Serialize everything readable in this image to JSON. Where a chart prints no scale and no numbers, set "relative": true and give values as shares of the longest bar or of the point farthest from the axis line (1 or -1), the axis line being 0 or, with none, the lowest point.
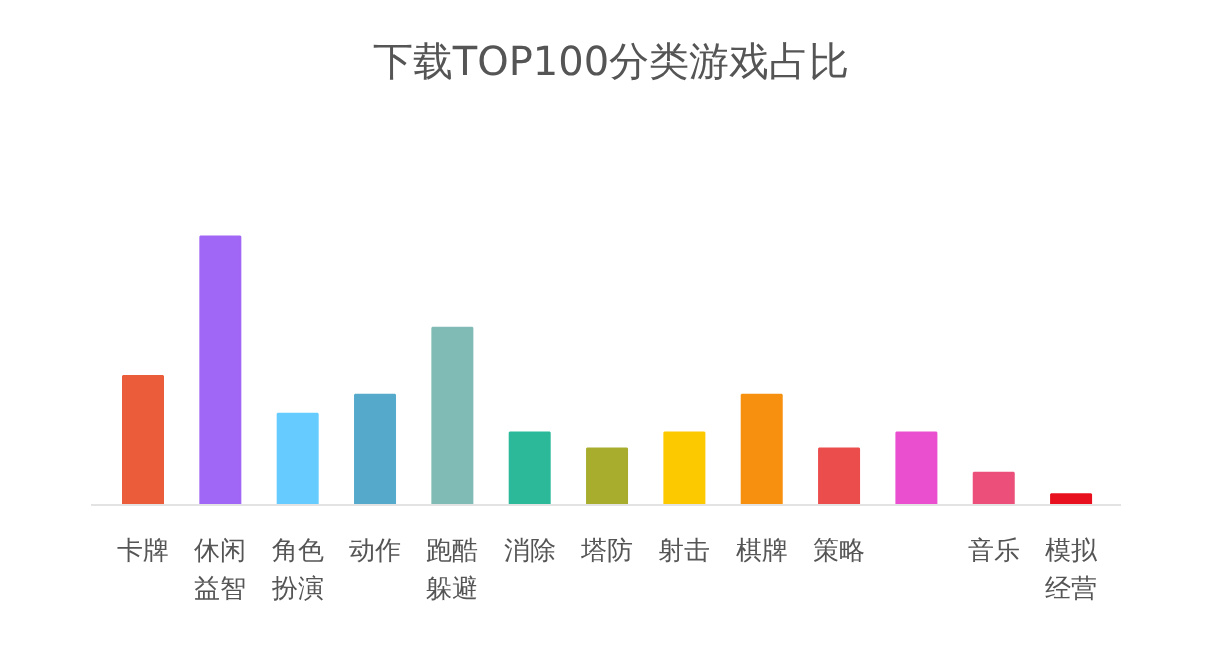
{
  "chart_data": {
    "type": "bar",
    "title": "下载TOP100分类游戏占比",
    "relative": true,
    "categories": [
      "卡牌",
      "休闲益智",
      "角色扮演",
      "动作",
      "跑酷躲避",
      "消除",
      "塔防",
      "射击",
      "棋牌",
      "策略",
      null,
      "音乐",
      "模拟经营"
    ],
    "values": [
      0.48,
      1,
      0.34,
      0.41,
      0.66,
      0.27,
      0.21,
      0.27,
      0.41,
      0.21,
      0.27,
      0.12,
      0.04
    ],
    "colors": [
      "#eb5c3a",
      "#a066f5",
      "#66ccff",
      "#55aacc",
      "#80bbb5",
      "#2bb99a",
      "#a8ad2e",
      "#fcc800",
      "#f7900f",
      "#eb4d4d",
      "#ea4fd0",
      "#eb4f7a",
      "#e8101e"
    ],
    "grid": false
  }
}
